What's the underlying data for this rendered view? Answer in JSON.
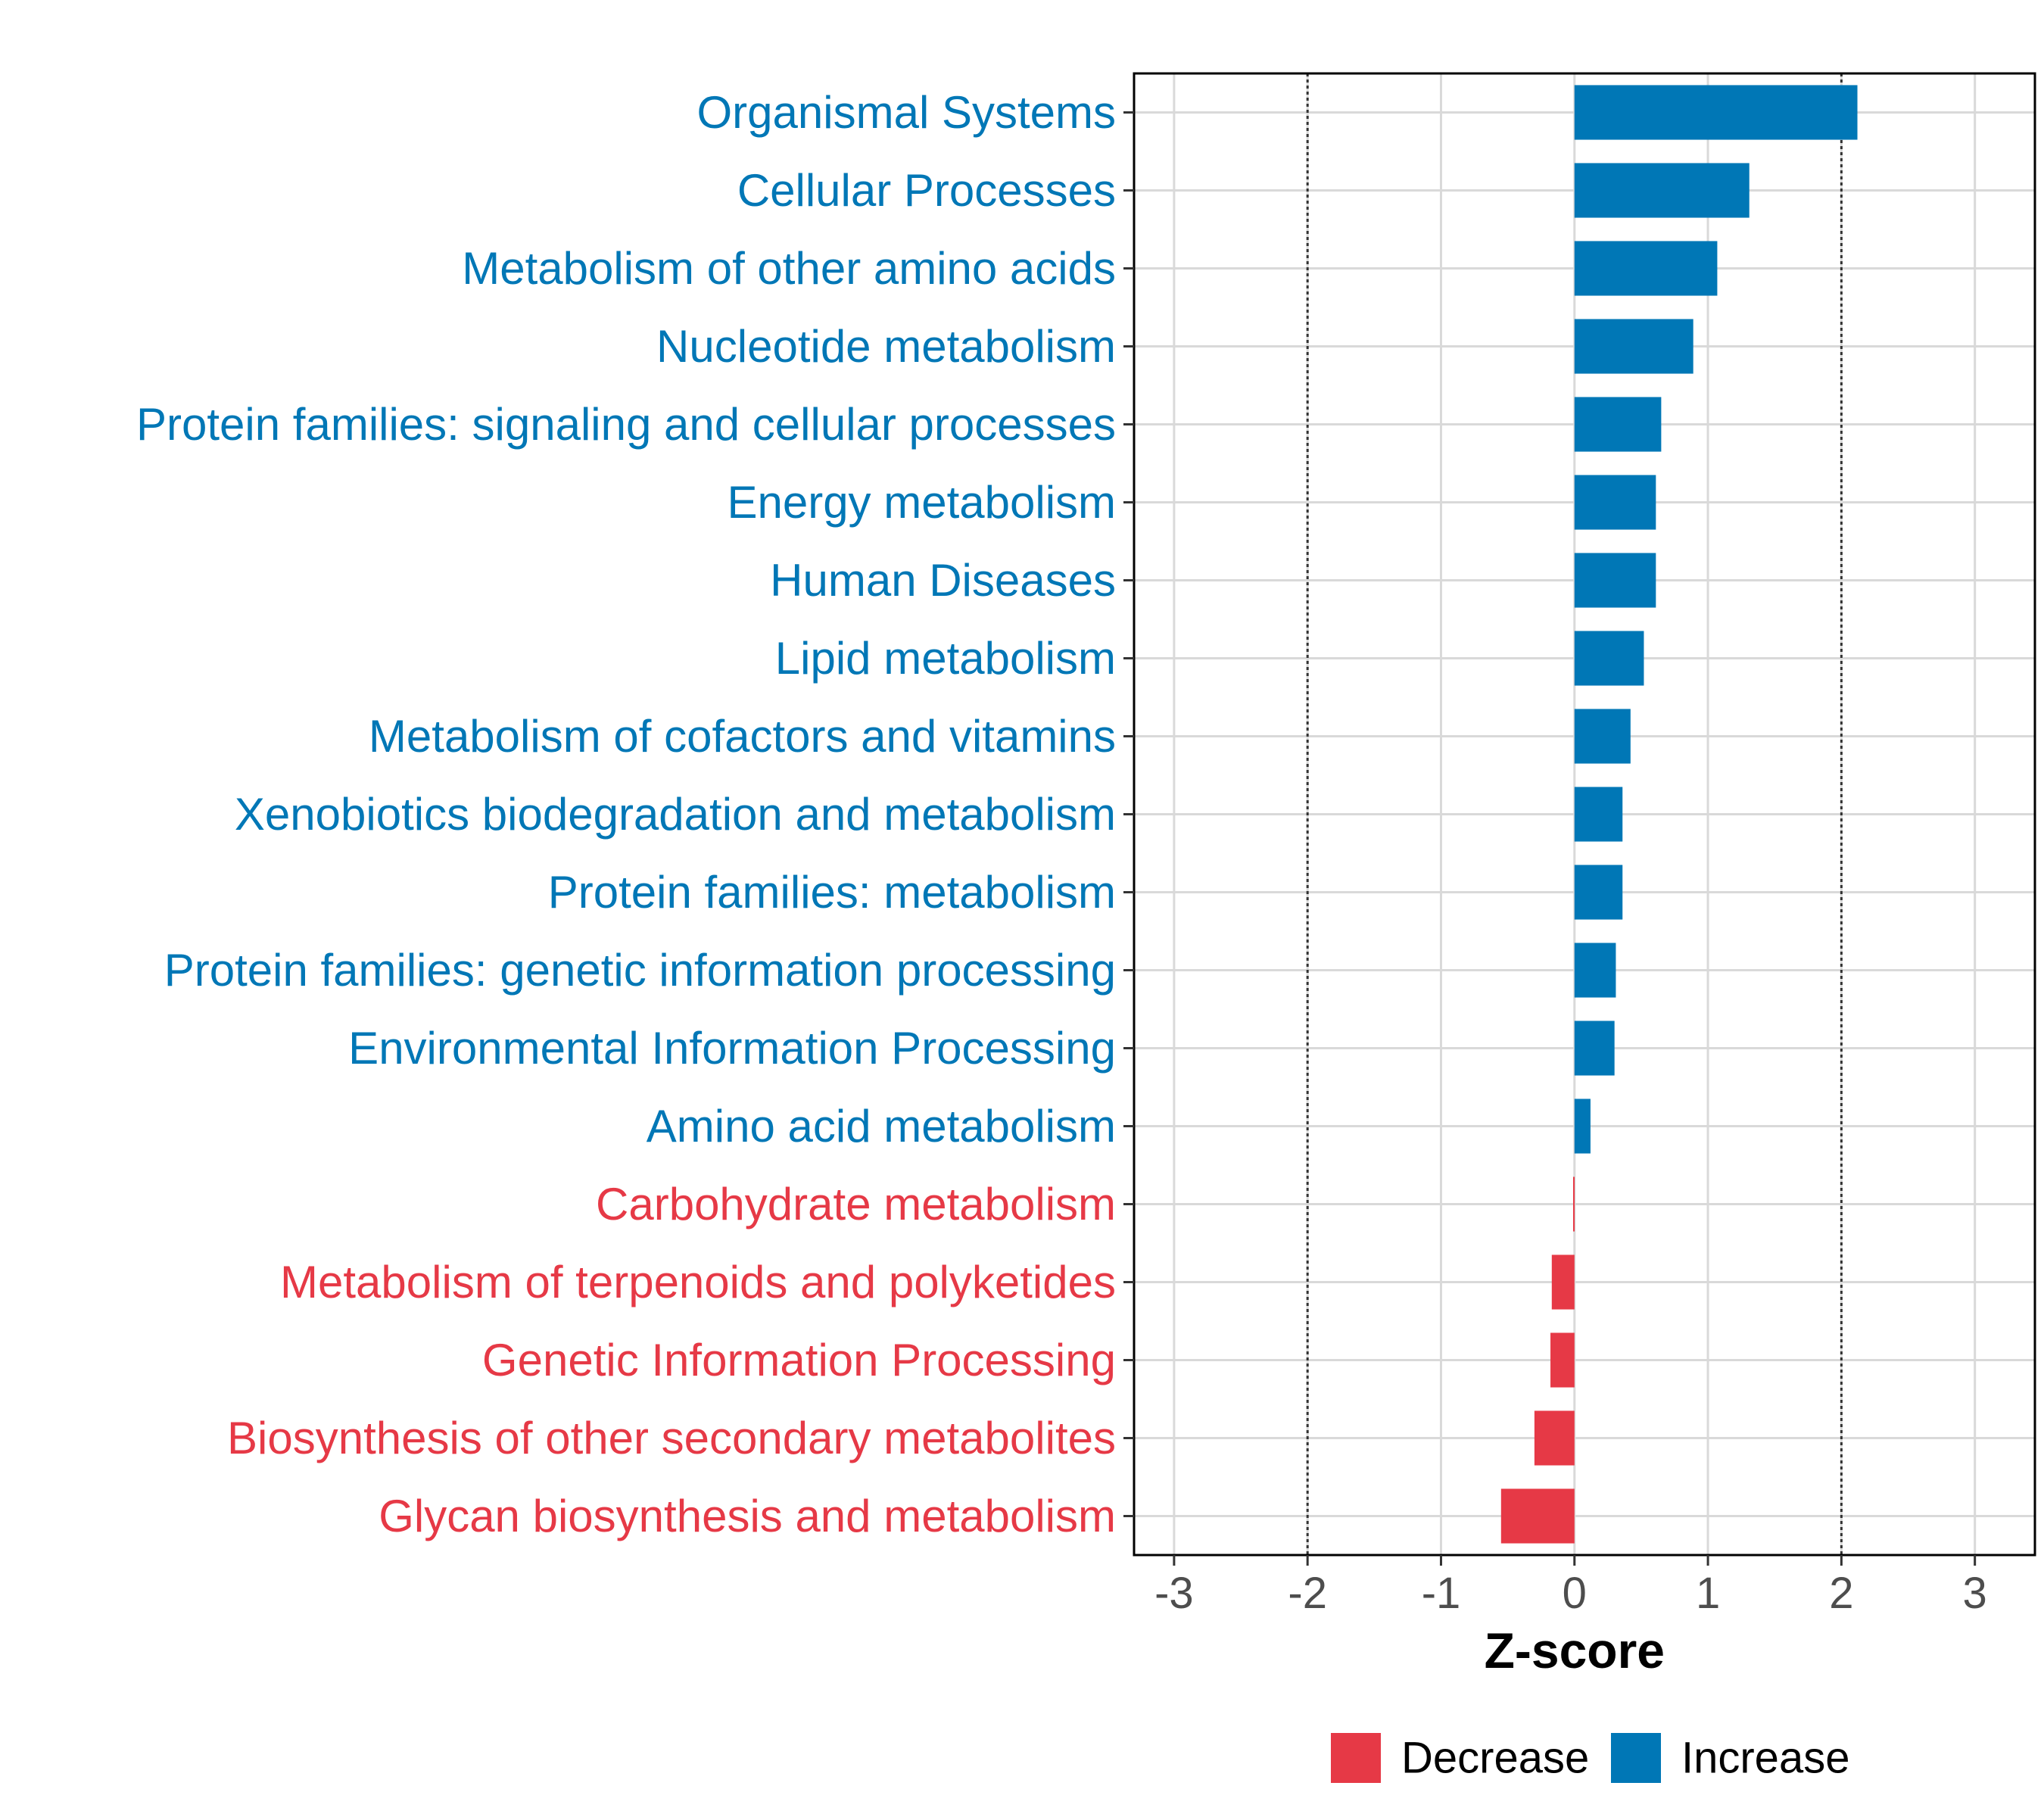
{
  "chart_data": {
    "type": "bar",
    "orientation": "horizontal",
    "xlabel": "Z-score",
    "xlim": [
      -3.3,
      3.45
    ],
    "xticks": [
      -3,
      -2,
      -1,
      0,
      1,
      2,
      3
    ],
    "xtick_labels": [
      "-3",
      "-2",
      "-1",
      "0",
      "1",
      "2",
      "3"
    ],
    "reference_lines": [
      -2,
      2
    ],
    "grid": true,
    "legend_position": "bottom",
    "colors": {
      "Decrease": "#e63946",
      "Increase": "#0077b6"
    },
    "legend": [
      {
        "label": "Decrease",
        "color": "#e63946"
      },
      {
        "label": "Increase",
        "color": "#0077b6"
      }
    ],
    "categories": [
      "Organismal Systems",
      "Cellular Processes",
      "Metabolism of other amino acids",
      "Nucleotide metabolism",
      "Protein families: signaling and cellular processes",
      "Energy metabolism",
      "Human Diseases",
      "Lipid metabolism",
      "Metabolism of cofactors and vitamins",
      "Xenobiotics biodegradation and metabolism",
      "Protein families: metabolism",
      "Protein families: genetic information processing",
      "Environmental Information Processing",
      "Amino acid metabolism",
      "Carbohydrate metabolism",
      "Metabolism of terpenoids and polyketides",
      "Genetic Information Processing",
      "Biosynthesis of other secondary metabolites",
      "Glycan biosynthesis and metabolism"
    ],
    "values": [
      2.12,
      1.31,
      1.07,
      0.89,
      0.65,
      0.61,
      0.61,
      0.52,
      0.42,
      0.36,
      0.36,
      0.31,
      0.3,
      0.12,
      -0.01,
      -0.17,
      -0.18,
      -0.3,
      -0.55
    ],
    "direction": [
      "Increase",
      "Increase",
      "Increase",
      "Increase",
      "Increase",
      "Increase",
      "Increase",
      "Increase",
      "Increase",
      "Increase",
      "Increase",
      "Increase",
      "Increase",
      "Increase",
      "Decrease",
      "Decrease",
      "Decrease",
      "Decrease",
      "Decrease"
    ]
  }
}
